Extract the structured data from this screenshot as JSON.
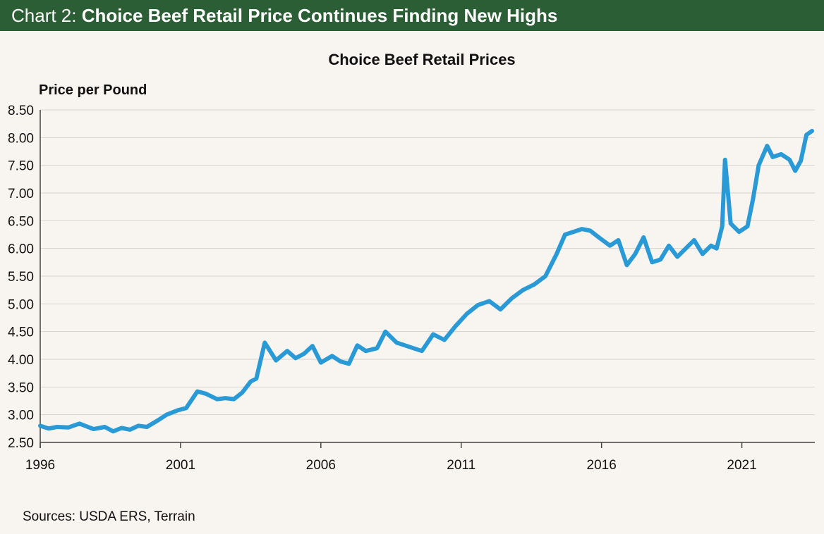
{
  "header": {
    "prefix": "Chart 2: ",
    "headline": "Choice Beef Retail Price Continues Finding New Highs"
  },
  "footer": {
    "source": "Sources: USDA ERS, Terrain"
  },
  "colors": {
    "banner": "#2c5e35",
    "background": "#f8f4f0",
    "line": "#2a9ad6",
    "grid": "#d6d3d0"
  },
  "chart_data": {
    "type": "line",
    "title": "Choice Beef Retail Prices",
    "xlabel": "",
    "ylabel": "Price per Pound",
    "xlim": [
      1996,
      2023.6
    ],
    "ylim": [
      2.5,
      8.5
    ],
    "grid": true,
    "legend": "none",
    "x_ticks": [
      "1996",
      "2001",
      "2006",
      "2011",
      "2016",
      "2021"
    ],
    "y_ticks": [
      "8.50",
      "8.00",
      "7.50",
      "7.00",
      "6.50",
      "6.00",
      "5.50",
      "5.00",
      "4.50",
      "4.00",
      "3.50",
      "3.00",
      "2.50"
    ],
    "series": [
      {
        "x": [
          1996.0,
          1996.3,
          1996.6,
          1997.0,
          1997.4,
          1997.9,
          1998.3,
          1998.6,
          1998.9,
          1999.2,
          1999.5,
          1999.8,
          2000.2,
          2000.5,
          2000.9,
          2001.2,
          2001.6,
          2001.9,
          2002.3,
          2002.6,
          2002.9,
          2003.2,
          2003.5,
          2003.7,
          2004.0,
          2004.4,
          2004.8,
          2005.1,
          2005.4,
          2005.7,
          2006.0,
          2006.4,
          2006.7,
          2007.0,
          2007.3,
          2007.6,
          2008.0,
          2008.3,
          2008.7,
          2009.0,
          2009.3,
          2009.6,
          2010.0,
          2010.4,
          2010.8,
          2011.2,
          2011.6,
          2012.0,
          2012.4,
          2012.8,
          2013.2,
          2013.6,
          2014.0,
          2014.4,
          2014.7,
          2015.0,
          2015.3,
          2015.6,
          2015.9,
          2016.3,
          2016.6,
          2016.9,
          2017.2,
          2017.5,
          2017.8,
          2018.1,
          2018.4,
          2018.7,
          2019.0,
          2019.3,
          2019.6,
          2019.9,
          2020.1,
          2020.3,
          2020.4,
          2020.6,
          2020.9,
          2021.2,
          2021.4,
          2021.6,
          2021.9,
          2022.1,
          2022.4,
          2022.7,
          2022.9,
          2023.1,
          2023.3,
          2023.5
        ],
        "values": [
          2.8,
          2.75,
          2.78,
          2.77,
          2.84,
          2.74,
          2.78,
          2.7,
          2.76,
          2.73,
          2.8,
          2.78,
          2.9,
          3.0,
          3.08,
          3.12,
          3.42,
          3.38,
          3.28,
          3.3,
          3.28,
          3.4,
          3.6,
          3.65,
          4.3,
          3.98,
          4.15,
          4.02,
          4.1,
          4.24,
          3.94,
          4.06,
          3.96,
          3.92,
          4.25,
          4.15,
          4.2,
          4.5,
          4.3,
          4.25,
          4.2,
          4.15,
          4.45,
          4.35,
          4.6,
          4.82,
          4.98,
          5.05,
          4.9,
          5.1,
          5.25,
          5.35,
          5.5,
          5.9,
          6.25,
          6.3,
          6.35,
          6.32,
          6.2,
          6.05,
          6.15,
          5.7,
          5.9,
          6.2,
          5.75,
          5.8,
          6.05,
          5.85,
          6.0,
          6.15,
          5.9,
          6.05,
          6.0,
          6.4,
          7.6,
          6.45,
          6.3,
          6.4,
          6.9,
          7.5,
          7.85,
          7.65,
          7.7,
          7.6,
          7.4,
          7.58,
          8.05,
          8.12
        ]
      }
    ]
  }
}
